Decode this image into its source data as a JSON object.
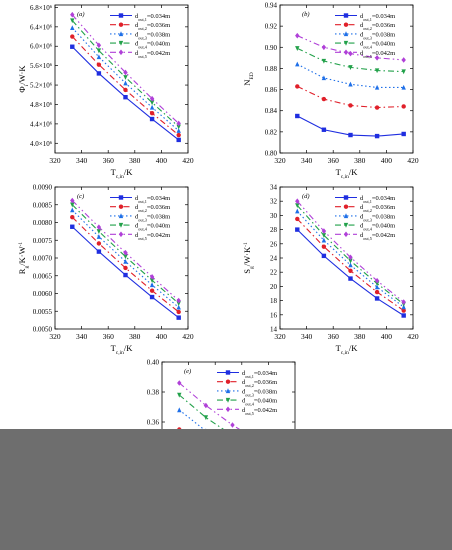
{
  "legend_labels": [
    "d_out,1=0.034m",
    "d_out,2=0.036m",
    "d_out,3=0.038m",
    "d_out,4=0.040m",
    "d_out,5=0.042m"
  ],
  "series_styles": [
    {
      "color": "#1f2ee0",
      "dash": "none",
      "marker": "square"
    },
    {
      "color": "#e0202a",
      "dash": "6,3,1.5,3",
      "marker": "circle"
    },
    {
      "color": "#1e6fe8",
      "dash": "1.5,2.5",
      "marker": "triangle"
    },
    {
      "color": "#22a14a",
      "dash": "6,3,1.5,3",
      "marker": "triangle-down"
    },
    {
      "color": "#b040d8",
      "dash": "6,3,1.5,3,1.5,3",
      "marker": "diamond"
    }
  ],
  "chart_data": [
    {
      "panel": "(a)",
      "type": "line",
      "xlabel": "T_c,in/K",
      "ylabel": "Φ_i/W·K",
      "xlim": [
        320,
        420
      ],
      "ylim": [
        3800000,
        6850000
      ],
      "xticks": [
        320,
        340,
        360,
        380,
        400,
        420
      ],
      "yticks": [
        4000000,
        4400000,
        4800000,
        5200000,
        5600000,
        6000000,
        6400000,
        6800000
      ],
      "ytick_labels": [
        "4.0×10^6",
        "4.4×10^6",
        "4.8×10^6",
        "5.2×10^6",
        "5.6×10^6",
        "6.0×10^6",
        "6.4×10^6",
        "6.8×10^6"
      ],
      "x": [
        333,
        353,
        373,
        393,
        413
      ],
      "series": [
        {
          "name": "d_out,1=0.034m",
          "values": [
            5990000,
            5440000,
            4950000,
            4500000,
            4070000
          ]
        },
        {
          "name": "d_out,2=0.036m",
          "values": [
            6200000,
            5620000,
            5100000,
            4620000,
            4170000
          ]
        },
        {
          "name": "d_out,3=0.038m",
          "values": [
            6380000,
            5780000,
            5240000,
            4740000,
            4260000
          ]
        },
        {
          "name": "d_out,4=0.040m",
          "values": [
            6530000,
            5910000,
            5360000,
            4840000,
            4340000
          ]
        },
        {
          "name": "d_out,5=0.042m",
          "values": [
            6650000,
            6020000,
            5460000,
            4920000,
            4410000
          ]
        }
      ]
    },
    {
      "panel": "(b)",
      "type": "line",
      "xlabel": "T_c,in/K",
      "ylabel": "N_ED",
      "xlim": [
        320,
        420
      ],
      "ylim": [
        0.8,
        0.94
      ],
      "xticks": [
        320,
        340,
        360,
        380,
        400,
        420
      ],
      "yticks": [
        0.8,
        0.82,
        0.84,
        0.86,
        0.88,
        0.9,
        0.92,
        0.94
      ],
      "ytick_labels": [
        "0.80",
        "0.82",
        "0.84",
        "0.86",
        "0.88",
        "0.90",
        "0.92",
        "0.94"
      ],
      "x": [
        333,
        353,
        373,
        393,
        413
      ],
      "series": [
        {
          "name": "d_out,1=0.034m",
          "values": [
            0.835,
            0.822,
            0.817,
            0.816,
            0.818
          ]
        },
        {
          "name": "d_out,2=0.036m",
          "values": [
            0.863,
            0.851,
            0.845,
            0.843,
            0.844
          ]
        },
        {
          "name": "d_out,3=0.038m",
          "values": [
            0.884,
            0.871,
            0.865,
            0.862,
            0.862
          ]
        },
        {
          "name": "d_out,4=0.040m",
          "values": [
            0.899,
            0.887,
            0.881,
            0.878,
            0.877
          ]
        },
        {
          "name": "d_out,5=0.042m",
          "values": [
            0.911,
            0.9,
            0.894,
            0.89,
            0.888
          ]
        }
      ]
    },
    {
      "panel": "(c)",
      "type": "line",
      "xlabel": "T_c,in/K",
      "ylabel": "R_g/K·W^-1",
      "xlim": [
        320,
        420
      ],
      "ylim": [
        0.005,
        0.009
      ],
      "xticks": [
        320,
        340,
        360,
        380,
        400,
        420
      ],
      "yticks": [
        0.005,
        0.0055,
        0.006,
        0.0065,
        0.007,
        0.0075,
        0.008,
        0.0085,
        0.009
      ],
      "ytick_labels": [
        "0.0050",
        "0.0055",
        "0.0060",
        "0.0065",
        "0.0070",
        "0.0075",
        "0.0080",
        "0.0085",
        "0.0090"
      ],
      "x": [
        333,
        353,
        373,
        393,
        413
      ],
      "series": [
        {
          "name": "d_out,1=0.034m",
          "values": [
            0.00788,
            0.00718,
            0.00652,
            0.0059,
            0.00532
          ]
        },
        {
          "name": "d_out,2=0.036m",
          "values": [
            0.00815,
            0.00741,
            0.00672,
            0.00608,
            0.00548
          ]
        },
        {
          "name": "d_out,3=0.038m",
          "values": [
            0.00835,
            0.0076,
            0.0069,
            0.00624,
            0.00561
          ]
        },
        {
          "name": "d_out,4=0.040m",
          "values": [
            0.0085,
            0.00775,
            0.00704,
            0.00637,
            0.00572
          ]
        },
        {
          "name": "d_out,5=0.042m",
          "values": [
            0.00862,
            0.00787,
            0.00715,
            0.00647,
            0.0058
          ]
        }
      ]
    },
    {
      "panel": "(d)",
      "type": "line",
      "xlabel": "T_c,in/K",
      "ylabel": "S_g/W·K^-1",
      "xlim": [
        320,
        420
      ],
      "ylim": [
        14,
        34
      ],
      "xticks": [
        320,
        340,
        360,
        380,
        400,
        420
      ],
      "yticks": [
        14,
        16,
        18,
        20,
        22,
        24,
        26,
        28,
        30,
        32,
        34
      ],
      "ytick_labels": [
        "14",
        "16",
        "18",
        "20",
        "22",
        "24",
        "26",
        "28",
        "30",
        "32",
        "34"
      ],
      "x": [
        333,
        353,
        373,
        393,
        413
      ],
      "series": [
        {
          "name": "d_out,1=0.034m",
          "values": [
            28.0,
            24.3,
            21.1,
            18.3,
            15.9
          ]
        },
        {
          "name": "d_out,2=0.036m",
          "values": [
            29.5,
            25.6,
            22.2,
            19.2,
            16.6
          ]
        },
        {
          "name": "d_out,3=0.038m",
          "values": [
            30.6,
            26.5,
            23.0,
            19.9,
            17.1
          ]
        },
        {
          "name": "d_out,4=0.040m",
          "values": [
            31.4,
            27.2,
            23.6,
            20.4,
            17.5
          ]
        },
        {
          "name": "d_out,5=0.042m",
          "values": [
            32.0,
            27.8,
            24.1,
            20.8,
            17.8
          ]
        }
      ]
    },
    {
      "panel": "(e)",
      "type": "line",
      "xlabel": "",
      "ylabel": "",
      "xlim": [
        320,
        420
      ],
      "ylim": [
        0.3,
        0.4
      ],
      "xticks": [
        320,
        340,
        360,
        380,
        400,
        420
      ],
      "yticks": [
        0.3,
        0.32,
        0.34,
        0.36,
        0.38,
        0.4
      ],
      "ytick_labels": [
        "",
        "",
        "0.34",
        "0.36",
        "0.38",
        "0.40"
      ],
      "x": [
        333,
        353,
        373,
        393,
        413
      ],
      "series": [
        {
          "name": "d_out,1=0.034m",
          "values": [
            0.339,
            0.327,
            0.317,
            0.309,
            0.302
          ]
        },
        {
          "name": "d_out,2=0.036m",
          "values": [
            0.355,
            0.342,
            0.331,
            0.322,
            0.314
          ]
        },
        {
          "name": "d_out,3=0.038m",
          "values": [
            0.368,
            0.354,
            0.342,
            0.332,
            0.323
          ]
        },
        {
          "name": "d_out,4=0.040m",
          "values": [
            0.378,
            0.363,
            0.351,
            0.34,
            0.33
          ]
        },
        {
          "name": "d_out,5=0.042m",
          "values": [
            0.386,
            0.371,
            0.358,
            0.347,
            0.337
          ]
        }
      ]
    }
  ]
}
